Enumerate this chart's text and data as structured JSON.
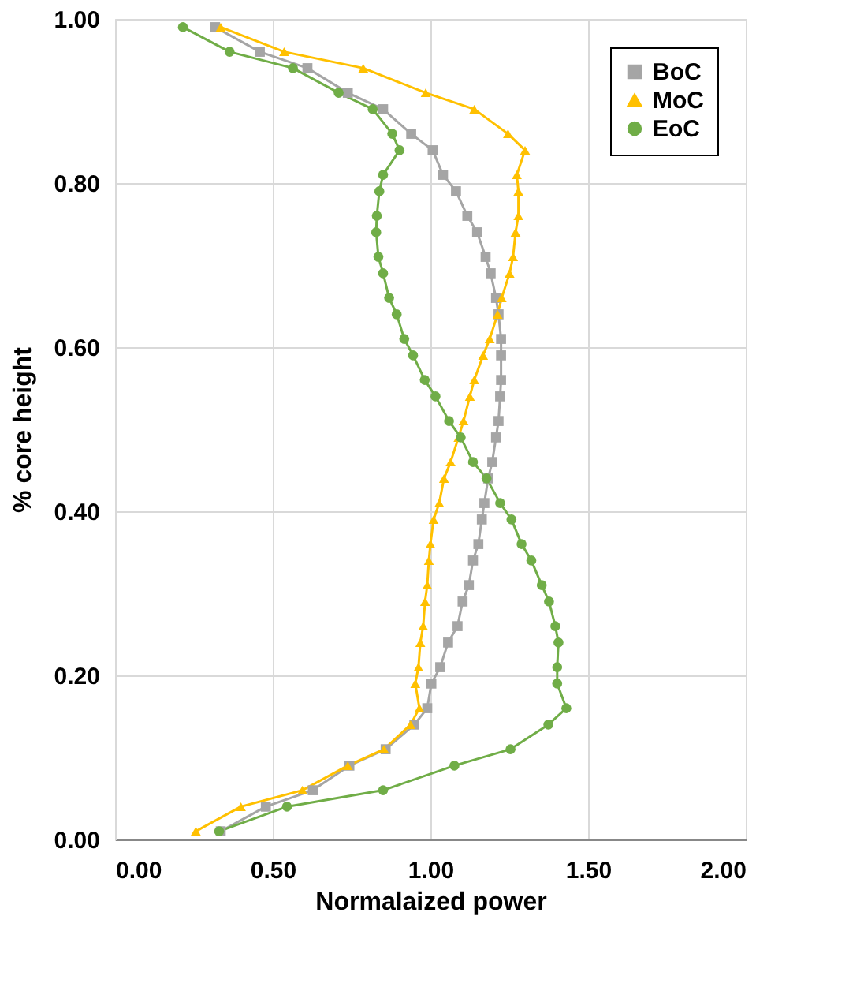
{
  "chart_data": {
    "type": "line",
    "xlabel": "Normalaized power",
    "ylabel": "% core height",
    "xlim": [
      0,
      2
    ],
    "xticks": [
      {
        "value": 0,
        "label": "0.00"
      },
      {
        "value": 0.5,
        "label": "0.50"
      },
      {
        "value": 1,
        "label": "1.00"
      },
      {
        "value": 1.5,
        "label": "1.50"
      },
      {
        "value": 2,
        "label": "2.00"
      }
    ],
    "ylim": [
      0,
      1
    ],
    "yticks": [
      {
        "value": 0,
        "label": "0.00"
      },
      {
        "value": 0.2,
        "label": "0.20"
      },
      {
        "value": 0.4,
        "label": "0.40"
      },
      {
        "value": 0.6,
        "label": "0.60"
      },
      {
        "value": 0.8,
        "label": "0.80"
      },
      {
        "value": 1,
        "label": "1.00"
      }
    ],
    "grid": true,
    "legend": "top right",
    "line_style": "solid",
    "series": [
      {
        "name": "BoC",
        "color": "#a5a5a5",
        "marker": "square",
        "x": [
          0.317,
          0.459,
          0.61,
          0.738,
          0.85,
          0.939,
          1.007,
          1.04,
          1.081,
          1.117,
          1.148,
          1.175,
          1.191,
          1.208,
          1.216,
          1.224,
          1.224,
          1.224,
          1.221,
          1.216,
          1.208,
          1.196,
          1.183,
          1.171,
          1.163,
          1.152,
          1.135,
          1.122,
          1.102,
          1.086,
          1.056,
          1.031,
          1.003,
          0.99,
          0.949,
          0.858,
          0.743,
          0.627,
          0.478,
          0.335
        ],
        "values": [
          0.99,
          0.96,
          0.94,
          0.91,
          0.89,
          0.86,
          0.84,
          0.81,
          0.79,
          0.76,
          0.74,
          0.71,
          0.69,
          0.66,
          0.64,
          0.61,
          0.59,
          0.56,
          0.54,
          0.51,
          0.49,
          0.46,
          0.44,
          0.41,
          0.39,
          0.36,
          0.34,
          0.31,
          0.29,
          0.26,
          0.24,
          0.21,
          0.19,
          0.16,
          0.14,
          0.11,
          0.09,
          0.06,
          0.04,
          0.01
        ]
      },
      {
        "name": "MoC",
        "color": "#ffc000",
        "marker": "triangle",
        "x": [
          0.335,
          0.536,
          0.787,
          0.985,
          1.139,
          1.246,
          1.3,
          1.274,
          1.279,
          1.279,
          1.27,
          1.262,
          1.251,
          1.226,
          1.213,
          1.188,
          1.167,
          1.139,
          1.125,
          1.105,
          1.089,
          1.064,
          1.043,
          1.028,
          1.01,
          1.0,
          0.995,
          0.99,
          0.983,
          0.977,
          0.968,
          0.962,
          0.952,
          0.965,
          0.937,
          0.853,
          0.738,
          0.594,
          0.399,
          0.256
        ],
        "values": [
          0.99,
          0.96,
          0.94,
          0.91,
          0.89,
          0.86,
          0.84,
          0.81,
          0.79,
          0.76,
          0.74,
          0.71,
          0.69,
          0.66,
          0.64,
          0.61,
          0.59,
          0.56,
          0.54,
          0.51,
          0.49,
          0.46,
          0.44,
          0.41,
          0.39,
          0.36,
          0.34,
          0.31,
          0.29,
          0.26,
          0.24,
          0.21,
          0.19,
          0.16,
          0.14,
          0.11,
          0.09,
          0.06,
          0.04,
          0.01
        ]
      },
      {
        "name": "EoC",
        "color": "#70ad47",
        "marker": "circle",
        "x": [
          0.215,
          0.363,
          0.564,
          0.709,
          0.817,
          0.879,
          0.902,
          0.85,
          0.838,
          0.83,
          0.828,
          0.835,
          0.85,
          0.869,
          0.893,
          0.917,
          0.945,
          0.982,
          1.016,
          1.059,
          1.096,
          1.135,
          1.178,
          1.221,
          1.257,
          1.289,
          1.32,
          1.353,
          1.376,
          1.396,
          1.406,
          1.402,
          1.402,
          1.431,
          1.374,
          1.254,
          1.076,
          0.85,
          0.545,
          0.33
        ],
        "values": [
          0.99,
          0.96,
          0.94,
          0.91,
          0.89,
          0.86,
          0.84,
          0.81,
          0.79,
          0.76,
          0.74,
          0.71,
          0.69,
          0.66,
          0.64,
          0.61,
          0.59,
          0.56,
          0.54,
          0.51,
          0.49,
          0.46,
          0.44,
          0.41,
          0.39,
          0.36,
          0.34,
          0.31,
          0.29,
          0.26,
          0.24,
          0.21,
          0.19,
          0.16,
          0.14,
          0.11,
          0.09,
          0.06,
          0.04,
          0.01
        ]
      }
    ]
  }
}
